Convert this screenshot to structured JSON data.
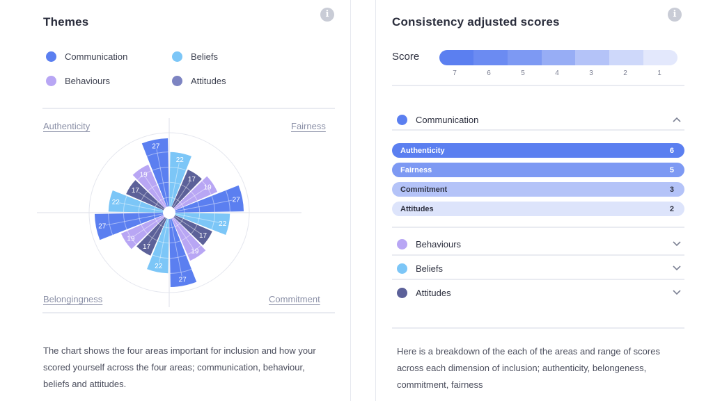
{
  "left": {
    "title": "Themes",
    "info_icon": "info-icon",
    "legend": [
      {
        "label": "Communication",
        "color": "#5b7ff0"
      },
      {
        "label": "Beliefs",
        "color": "#7cc6f7"
      },
      {
        "label": "Behaviours",
        "color": "#b8a6f4"
      },
      {
        "label": "Attitudes",
        "color": "#7d84c2"
      }
    ],
    "quadrants": {
      "top_left": "Authenticity",
      "top_right": "Fairness",
      "bottom_left": "Belongingness",
      "bottom_right": "Commitment"
    },
    "description": "The chart shows the four areas important for inclusion and how your scored yourself across the four areas; communication, behaviour, beliefs and attitudes."
  },
  "chart_data": {
    "type": "polar-bar",
    "wedges": [
      {
        "quadrant": "Fairness",
        "series": "Beliefs",
        "value": 22,
        "color": "#7cc6f7"
      },
      {
        "quadrant": "Fairness",
        "series": "Attitudes",
        "value": 17,
        "color": "#5c6199"
      },
      {
        "quadrant": "Fairness",
        "series": "Behaviours",
        "value": 19,
        "color": "#b8a6f4"
      },
      {
        "quadrant": "Fairness",
        "series": "Communication",
        "value": 27,
        "color": "#5b7ff0"
      },
      {
        "quadrant": "Commitment",
        "series": "Beliefs",
        "value": 22,
        "color": "#7cc6f7"
      },
      {
        "quadrant": "Commitment",
        "series": "Attitudes",
        "value": 17,
        "color": "#5c6199"
      },
      {
        "quadrant": "Commitment",
        "series": "Behaviours",
        "value": 19,
        "color": "#b8a6f4"
      },
      {
        "quadrant": "Commitment",
        "series": "Communication",
        "value": 27,
        "color": "#5b7ff0"
      },
      {
        "quadrant": "Belongingness",
        "series": "Beliefs",
        "value": 22,
        "color": "#7cc6f7"
      },
      {
        "quadrant": "Belongingness",
        "series": "Attitudes",
        "value": 17,
        "color": "#5c6199"
      },
      {
        "quadrant": "Belongingness",
        "series": "Behaviours",
        "value": 19,
        "color": "#b8a6f4"
      },
      {
        "quadrant": "Belongingness",
        "series": "Communication",
        "value": 27,
        "color": "#5b7ff0"
      },
      {
        "quadrant": "Authenticity",
        "series": "Beliefs",
        "value": 22,
        "color": "#7cc6f7"
      },
      {
        "quadrant": "Authenticity",
        "series": "Attitudes",
        "value": 17,
        "color": "#5c6199"
      },
      {
        "quadrant": "Authenticity",
        "series": "Behaviours",
        "value": 19,
        "color": "#b8a6f4"
      },
      {
        "quadrant": "Authenticity",
        "series": "Communication",
        "value": 27,
        "color": "#5b7ff0"
      }
    ],
    "max_value": 29,
    "grid_rings": 4
  },
  "right": {
    "title": "Consistency adjusted scores",
    "info_icon": "info-icon",
    "score_label": "Score",
    "scale": [
      {
        "num": "7",
        "color": "#5b7ff0"
      },
      {
        "num": "6",
        "color": "#6b8bf2"
      },
      {
        "num": "5",
        "color": "#7d99f3"
      },
      {
        "num": "4",
        "color": "#97adf5"
      },
      {
        "num": "3",
        "color": "#b4c3f8"
      },
      {
        "num": "2",
        "color": "#ced8fa"
      },
      {
        "num": "1",
        "color": "#e3e8fc"
      }
    ],
    "sections": [
      {
        "label": "Communication",
        "color": "#5b7ff0",
        "expanded": true,
        "chevron": "chevron-up-icon"
      },
      {
        "label": "Behaviours",
        "color": "#b8a6f4",
        "expanded": false,
        "chevron": "chevron-down-icon"
      },
      {
        "label": "Beliefs",
        "color": "#7cc6f7",
        "expanded": false,
        "chevron": "chevron-down-icon"
      },
      {
        "label": "Attitudes",
        "color": "#5c6199",
        "expanded": false,
        "chevron": "chevron-down-icon"
      }
    ],
    "communication_scores": [
      {
        "label": "Authenticity",
        "score": "6",
        "bg": "#5b7ff0",
        "fg": "#ffffff"
      },
      {
        "label": "Fairness",
        "score": "5",
        "bg": "#7d99f3",
        "fg": "#ffffff"
      },
      {
        "label": "Commitment",
        "score": "3",
        "bg": "#b4c3f8",
        "fg": "#2e3140"
      },
      {
        "label": "Attitudes",
        "score": "2",
        "bg": "#dde4fb",
        "fg": "#2e3140"
      }
    ],
    "description": "Here is a breakdown of the each of the areas and range of scores across each dimension of inclusion; authenticity, belongeness, commitment, fairness"
  }
}
